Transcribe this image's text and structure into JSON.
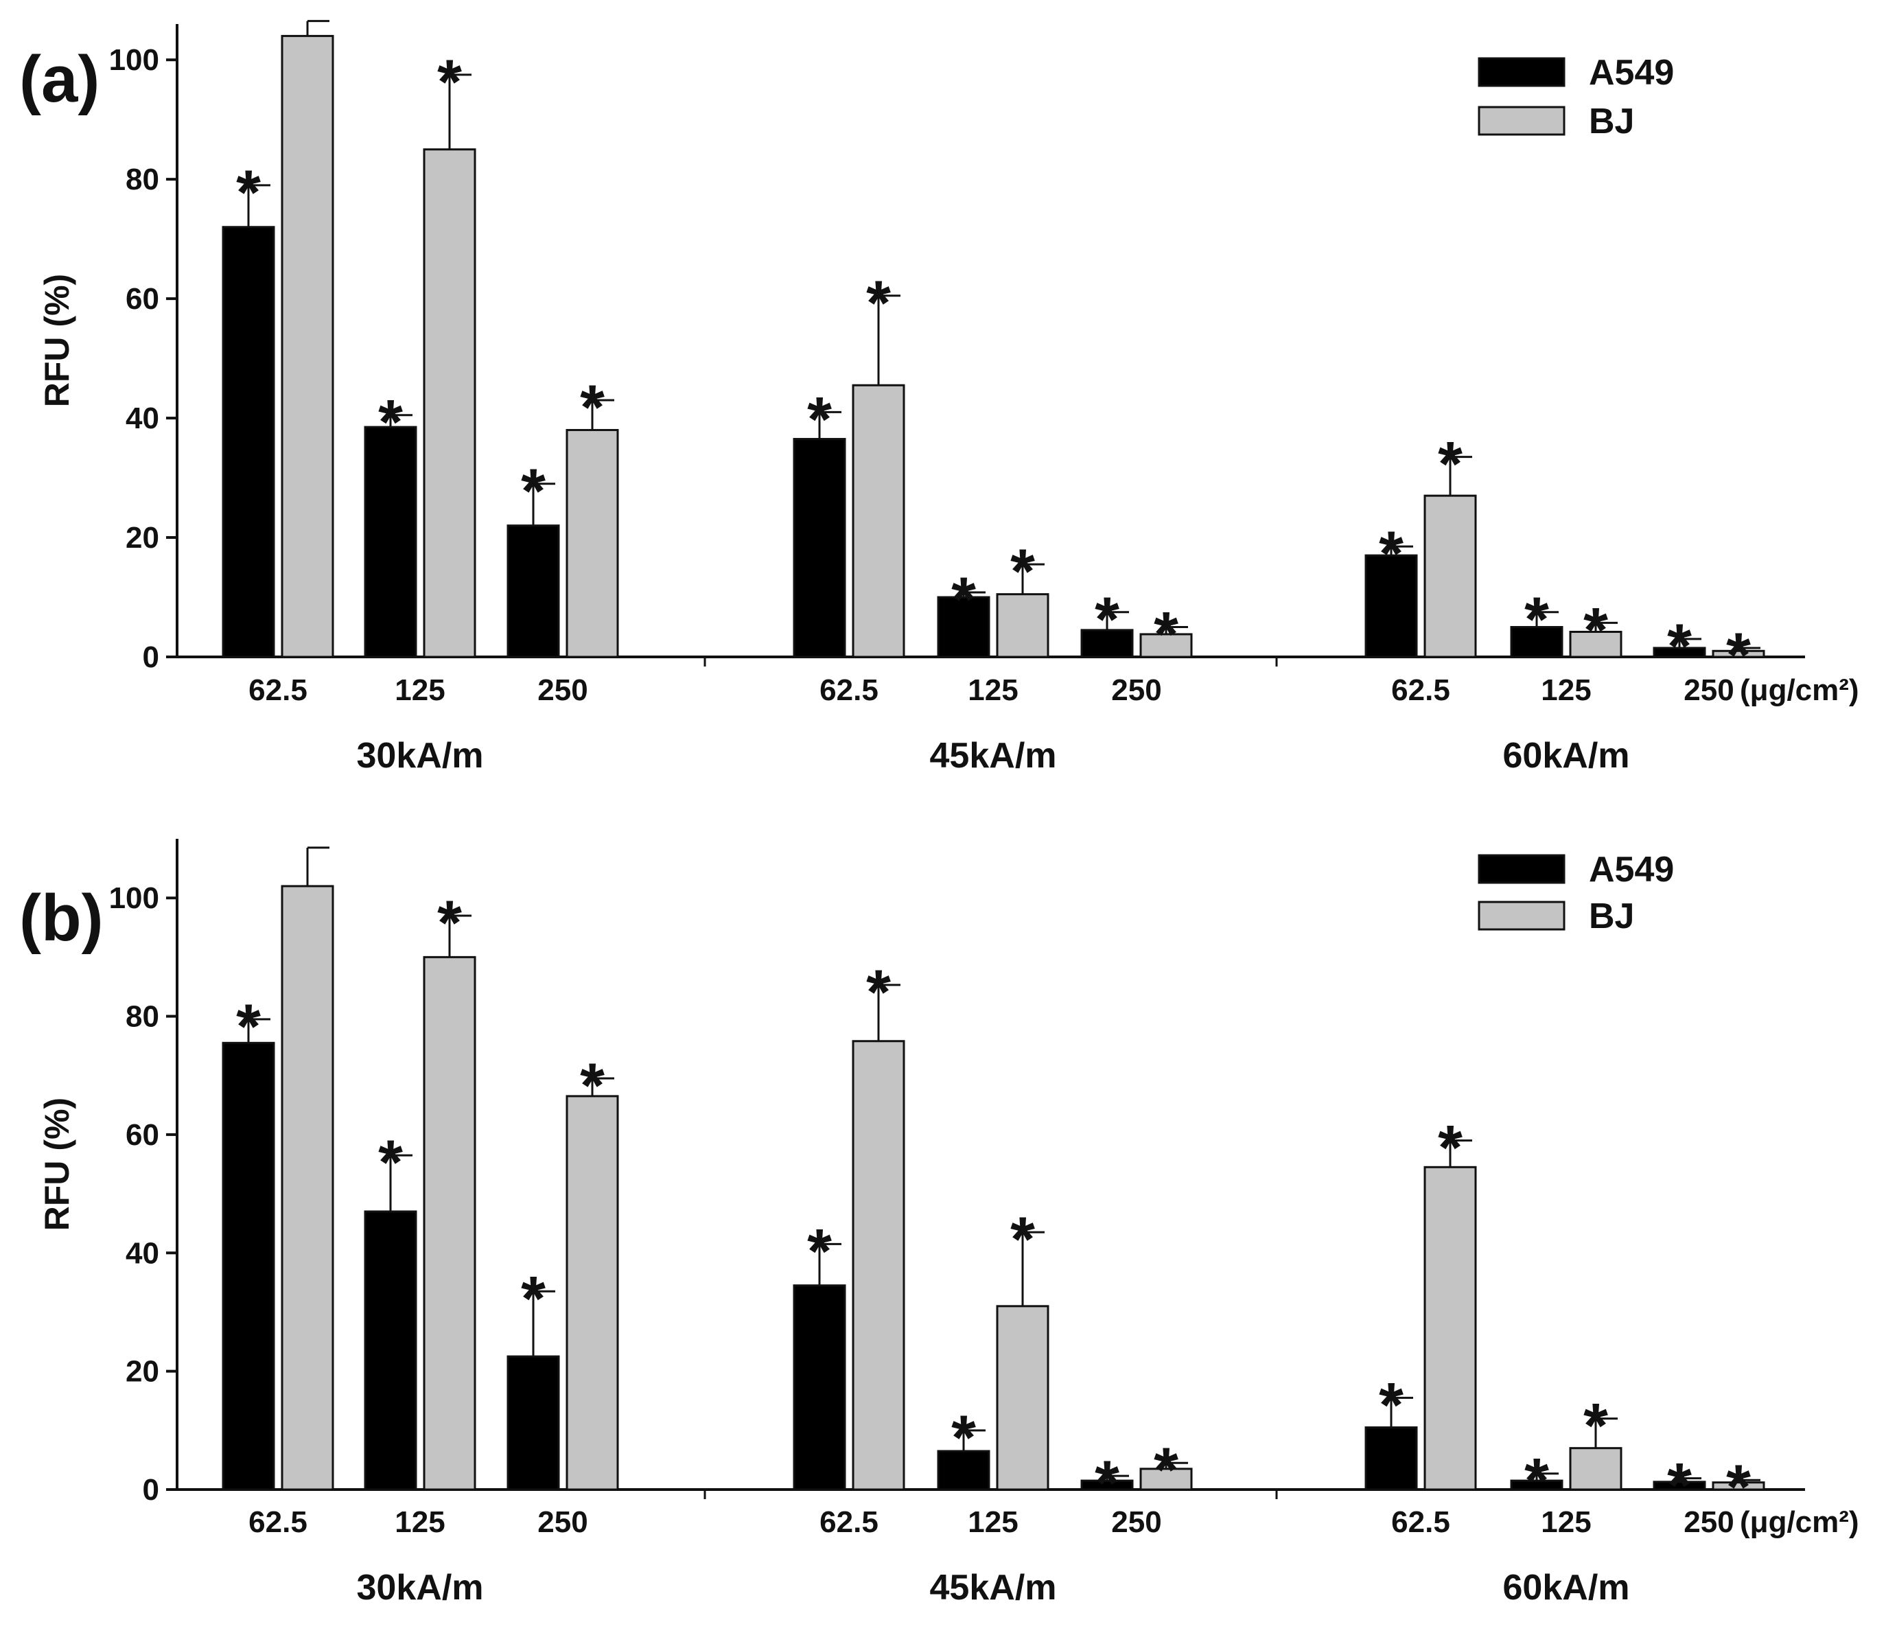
{
  "colors": {
    "A549": "#000000",
    "BJ": "#c4c4c4",
    "axis": "#111111"
  },
  "chart_data": [
    {
      "type": "bar",
      "panel_label": "(a)",
      "ylabel": "RFU (%)",
      "ylim": [
        0,
        106
      ],
      "yticks": [
        "0",
        "20",
        "40",
        "60",
        "80",
        "100"
      ],
      "xunit": "(μg/cm²)",
      "groups": [
        "30kA/m",
        "45kA/m",
        "60kA/m"
      ],
      "categories": [
        "62.5",
        "125",
        "250"
      ],
      "significance_mark": "*",
      "legend": [
        "A549",
        "BJ"
      ],
      "series": [
        {
          "name": "A549",
          "values": [
            [
              72,
              38.5,
              22
            ],
            [
              36.5,
              10,
              4.5
            ],
            [
              17,
              5,
              1.5
            ]
          ],
          "errors": [
            [
              7,
              2,
              7
            ],
            [
              4.5,
              0.8,
              3
            ],
            [
              1.5,
              2.5,
              1.5
            ]
          ],
          "significant": [
            [
              true,
              true,
              true
            ],
            [
              true,
              true,
              true
            ],
            [
              true,
              true,
              true
            ]
          ]
        },
        {
          "name": "BJ",
          "values": [
            [
              104,
              85,
              38
            ],
            [
              45.5,
              10.5,
              3.8
            ],
            [
              27,
              4.2,
              1
            ]
          ],
          "errors": [
            [
              2.5,
              12.5,
              5
            ],
            [
              15,
              5,
              1.2
            ],
            [
              6.5,
              1.5,
              0.5
            ]
          ],
          "significant": [
            [
              false,
              true,
              true
            ],
            [
              true,
              true,
              true
            ],
            [
              true,
              true,
              true
            ]
          ]
        }
      ]
    },
    {
      "type": "bar",
      "panel_label": "(b)",
      "ylabel": "RFU (%)",
      "ylim": [
        0,
        110
      ],
      "yticks": [
        "0",
        "20",
        "40",
        "60",
        "80",
        "100"
      ],
      "xunit": "(μg/cm²)",
      "groups": [
        "30kA/m",
        "45kA/m",
        "60kA/m"
      ],
      "categories": [
        "62.5",
        "125",
        "250"
      ],
      "significance_mark": "*",
      "legend": [
        "A549",
        "BJ"
      ],
      "series": [
        {
          "name": "A549",
          "values": [
            [
              75.5,
              47,
              22.5
            ],
            [
              34.5,
              6.5,
              1.5
            ],
            [
              10.5,
              1.5,
              1.3
            ]
          ],
          "errors": [
            [
              4,
              9.5,
              11
            ],
            [
              7,
              3.5,
              0.8
            ],
            [
              5,
              1.2,
              0.6
            ]
          ],
          "significant": [
            [
              true,
              true,
              true
            ],
            [
              true,
              true,
              true
            ],
            [
              true,
              true,
              true
            ]
          ]
        },
        {
          "name": "BJ",
          "values": [
            [
              102,
              90,
              66.5
            ],
            [
              75.8,
              31,
              3.5
            ],
            [
              54.5,
              7,
              1.2
            ]
          ],
          "errors": [
            [
              6.5,
              7,
              3
            ],
            [
              9.5,
              12.5,
              1
            ],
            [
              4.5,
              5,
              0.4
            ]
          ],
          "significant": [
            [
              false,
              true,
              true
            ],
            [
              true,
              true,
              true
            ],
            [
              true,
              true,
              true
            ]
          ]
        }
      ]
    }
  ]
}
